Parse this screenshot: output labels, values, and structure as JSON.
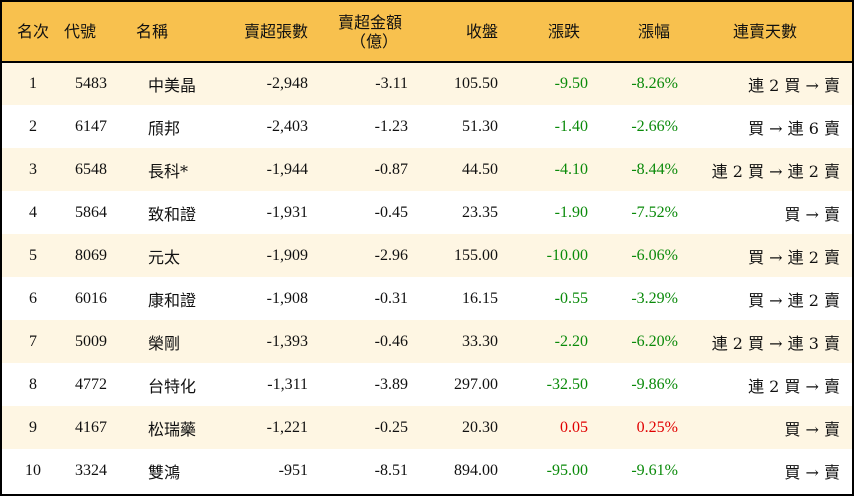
{
  "colors": {
    "header_bg": "#F8C14E",
    "alt_row_bg": "#FEF6E3",
    "down": "#0a8a0a",
    "up": "#e00000"
  },
  "headers": [
    "名次",
    "代號",
    "名稱",
    "賣超張數",
    "賣超金額",
    "（億）",
    "收盤",
    "漲跌",
    "漲幅",
    "連賣天數"
  ],
  "rows": [
    [
      "1",
      "5483",
      "中美晶",
      "-2,948",
      "-3.11",
      "105.50",
      "-9.50",
      "-8.26%",
      "連 2 買 → 賣"
    ],
    [
      "2",
      "6147",
      "頎邦",
      "-2,403",
      "-1.23",
      "51.30",
      "-1.40",
      "-2.66%",
      "買 → 連 6 賣"
    ],
    [
      "3",
      "6548",
      "長科*",
      "-1,944",
      "-0.87",
      "44.50",
      "-4.10",
      "-8.44%",
      "連 2 買 → 連 2 賣"
    ],
    [
      "4",
      "5864",
      "致和證",
      "-1,931",
      "-0.45",
      "23.35",
      "-1.90",
      "-7.52%",
      "買 → 賣"
    ],
    [
      "5",
      "8069",
      "元太",
      "-1,909",
      "-2.96",
      "155.00",
      "-10.00",
      "-6.06%",
      "買 → 連 2 賣"
    ],
    [
      "6",
      "6016",
      "康和證",
      "-1,908",
      "-0.31",
      "16.15",
      "-0.55",
      "-3.29%",
      "買 → 連 2 賣"
    ],
    [
      "7",
      "5009",
      "榮剛",
      "-1,393",
      "-0.46",
      "33.30",
      "-2.20",
      "-6.20%",
      "連 2 買 → 連 3 賣"
    ],
    [
      "8",
      "4772",
      "台特化",
      "-1,311",
      "-3.89",
      "297.00",
      "-32.50",
      "-9.86%",
      "連 2 買 → 賣"
    ],
    [
      "9",
      "4167",
      "松瑞藥",
      "-1,221",
      "-0.25",
      "20.30",
      "0.05",
      "0.25%",
      "買 → 賣"
    ],
    [
      "10",
      "3324",
      "雙鴻",
      "-951",
      "-8.51",
      "894.00",
      "-95.00",
      "-9.61%",
      "買 → 賣"
    ]
  ]
}
